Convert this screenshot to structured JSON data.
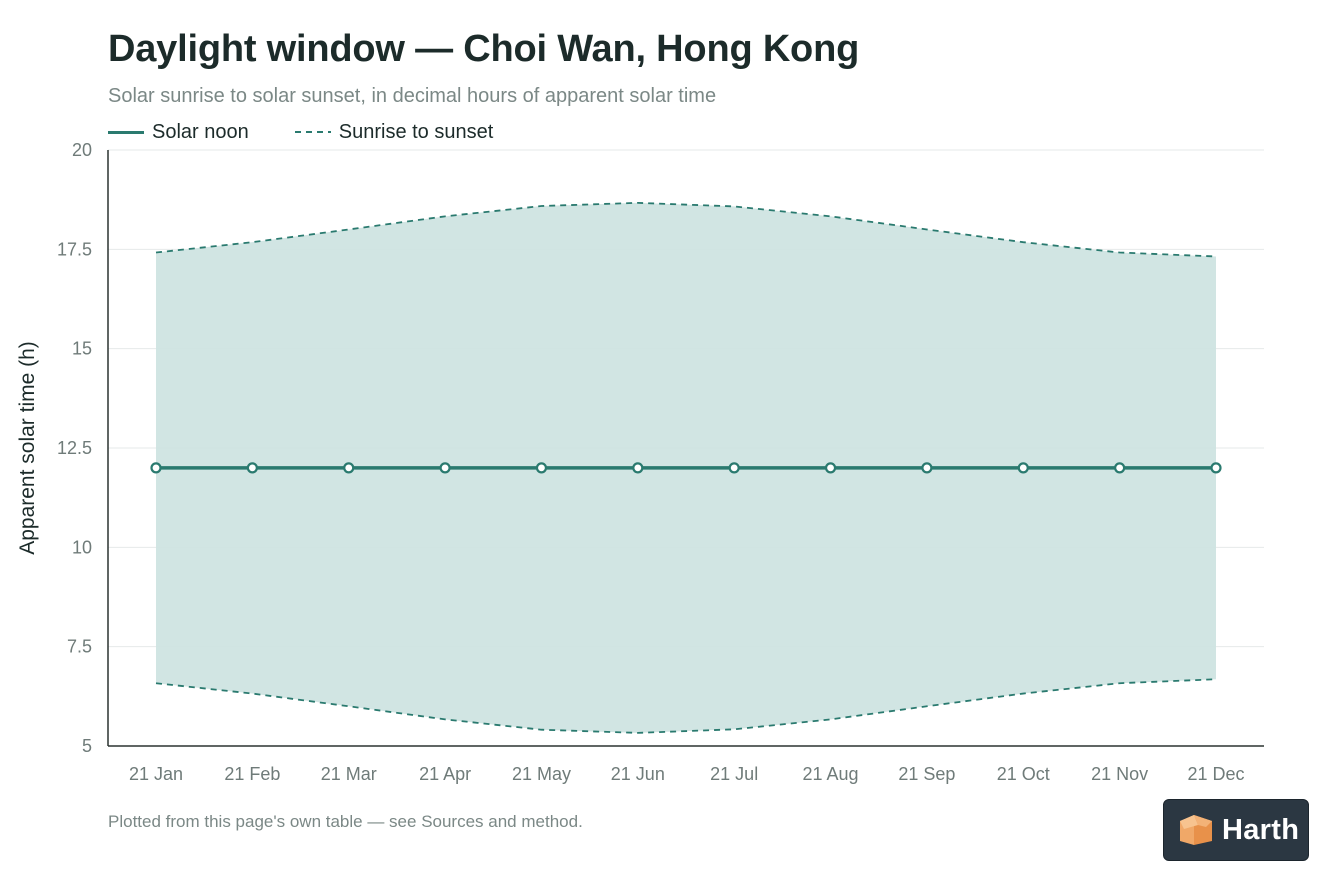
{
  "header": {
    "title": "Daylight window — Choi Wan, Hong Kong",
    "subtitle": "Solar sunrise to solar sunset, in decimal hours of apparent solar time"
  },
  "legend": {
    "solar_noon": "Solar noon",
    "sunrise_sunset": "Sunrise to sunset"
  },
  "footnote": "Plotted from this page's own table — see Sources and method.",
  "badge": {
    "text": "Harth",
    "icon": "box-logo-icon"
  },
  "colors": {
    "accent": "#2a7a6f",
    "band_fill": "#cfe4e1",
    "title": "#1c2b2a",
    "muted": "#7b8886",
    "badge_bg": "#2b3742",
    "logo_orange": "#f0a868"
  },
  "chart_data": {
    "type": "area",
    "title": "Daylight window — Choi Wan, Hong Kong",
    "subtitle": "Solar sunrise to solar sunset, in decimal hours of apparent solar time",
    "xlabel": "",
    "ylabel": "Apparent solar time (h)",
    "categories": [
      "21 Jan",
      "21 Feb",
      "21 Mar",
      "21 Apr",
      "21 May",
      "21 Jun",
      "21 Jul",
      "21 Aug",
      "21 Sep",
      "21 Oct",
      "21 Nov",
      "21 Dec"
    ],
    "ylim": [
      5,
      20
    ],
    "yticks": [
      5,
      7.5,
      10,
      12.5,
      15,
      17.5,
      20
    ],
    "ytick_labels": [
      "5",
      "7.5",
      "10",
      "12.5",
      "15",
      "17.5",
      "20"
    ],
    "grid": true,
    "legend_position": "top-left",
    "series": [
      {
        "name": "Solar noon",
        "style": "solid-with-markers",
        "values": [
          12,
          12,
          12,
          12,
          12,
          12,
          12,
          12,
          12,
          12,
          12,
          12
        ]
      },
      {
        "name": "Sunrise to sunset",
        "style": "dashed-band",
        "low": [
          6.58,
          6.32,
          6.0,
          5.67,
          5.41,
          5.33,
          5.42,
          5.67,
          6.0,
          6.32,
          6.58,
          6.68
        ],
        "high": [
          17.42,
          17.68,
          18.0,
          18.33,
          18.59,
          18.67,
          18.58,
          18.33,
          18.0,
          17.68,
          17.42,
          17.32
        ]
      }
    ]
  }
}
